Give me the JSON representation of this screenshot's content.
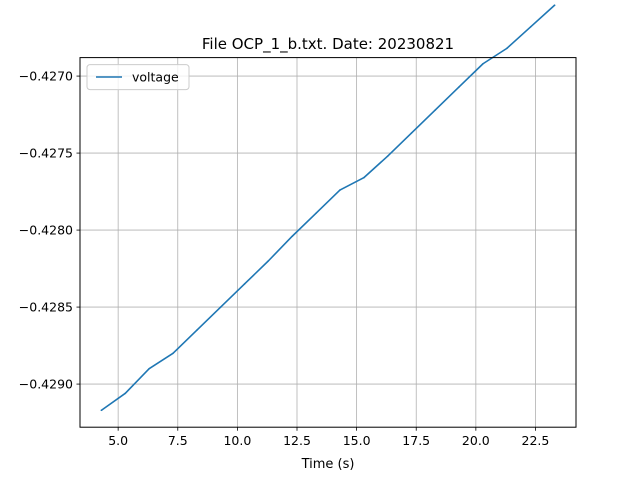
{
  "chart_data": {
    "type": "line",
    "title": "File OCP_1_b.txt. Date: 20230821",
    "xlabel": "Time (s)",
    "ylabel": "",
    "xlim": [
      3.4,
      24.2
    ],
    "ylim": [
      -0.42928,
      -0.42688
    ],
    "x_ticks": [
      5.0,
      7.5,
      10.0,
      12.5,
      15.0,
      17.5,
      20.0,
      22.5
    ],
    "x_tick_labels": [
      "5.0",
      "7.5",
      "10.0",
      "12.5",
      "15.0",
      "17.5",
      "20.0",
      "22.5"
    ],
    "y_ticks": [
      -0.429,
      -0.4285,
      -0.428,
      -0.4275,
      -0.427
    ],
    "y_tick_labels": [
      "−0.4290",
      "−0.4285",
      "−0.4280",
      "−0.4275",
      "−0.4270"
    ],
    "grid": true,
    "legend_position": "upper left",
    "series": [
      {
        "name": "voltage",
        "color": "#1f77b4",
        "x": [
          4.3,
          5.3,
          6.3,
          7.3,
          8.3,
          9.3,
          10.3,
          11.3,
          12.3,
          13.3,
          14.3,
          15.3,
          16.3,
          17.3,
          18.3,
          19.3,
          20.3,
          21.3,
          22.3,
          23.3
        ],
        "y": [
          -0.42917,
          -0.42906,
          -0.4289,
          -0.4288,
          -0.42865,
          -0.4285,
          -0.42835,
          -0.4282,
          -0.42804,
          -0.42789,
          -0.42774,
          -0.42766,
          -0.42752,
          -0.42737,
          -0.42722,
          -0.42707,
          -0.42692,
          -0.42682,
          -0.42668,
          -0.42654
        ]
      }
    ]
  }
}
